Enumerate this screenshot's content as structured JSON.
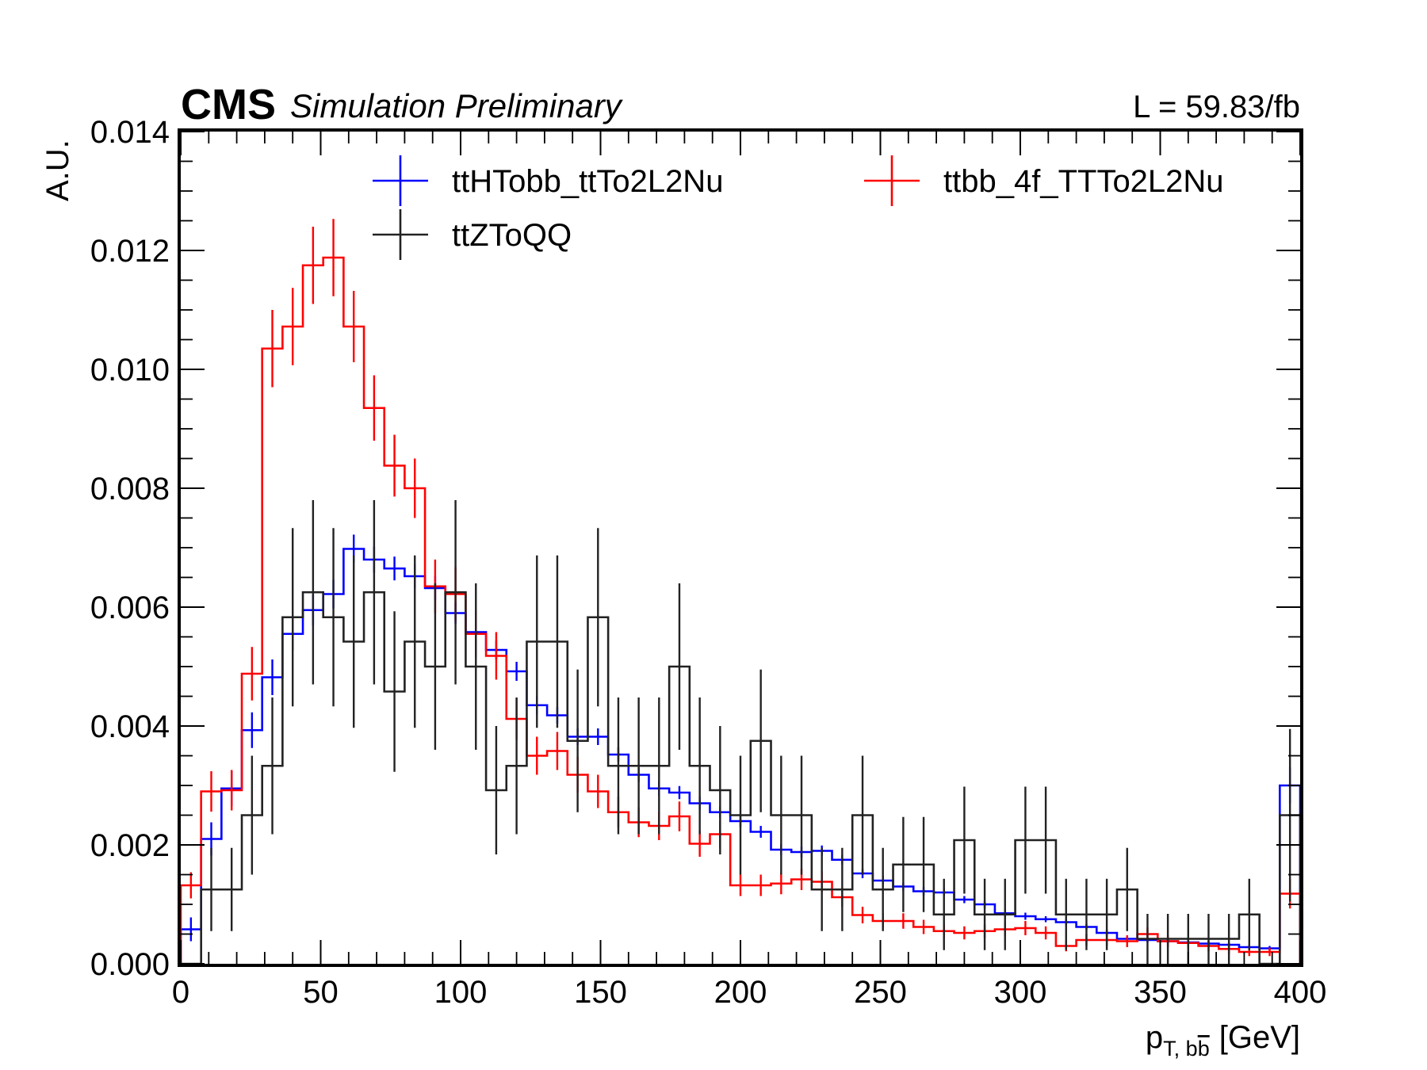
{
  "header": {
    "experiment": "CMS",
    "status": "Simulation Preliminary",
    "lumi": "L = 59.83/fb"
  },
  "chart_data": {
    "type": "histogram-step",
    "xlabel": "p_{T, b̅b} [GeV]",
    "xlabel_main": "p",
    "xlabel_sub": "T, b",
    "xlabel_sub_bar": "b",
    "xlabel_unit": "[GeV]",
    "ylabel": "A.U.",
    "xlim": [
      0,
      400
    ],
    "ylim": [
      0,
      0.014
    ],
    "xticks": [
      "0",
      "50",
      "100",
      "150",
      "200",
      "250",
      "300",
      "350",
      "400"
    ],
    "yticks": [
      "0.000",
      "0.002",
      "0.004",
      "0.006",
      "0.008",
      "0.010",
      "0.012",
      "0.014"
    ],
    "bin_edges_start": 0,
    "bin_width": 7.2727,
    "n_bins": 55,
    "legend": {
      "placement": "top"
    },
    "series": [
      {
        "name": "ttHTobb_ttTo2L2Nu",
        "color": "#0000ff",
        "values": [
          0.00058,
          0.0021,
          0.00295,
          0.00393,
          0.00482,
          0.00555,
          0.00595,
          0.00622,
          0.00698,
          0.0068,
          0.00665,
          0.00652,
          0.00632,
          0.0059,
          0.00558,
          0.00528,
          0.00492,
          0.00435,
          0.00418,
          0.00382,
          0.00382,
          0.00352,
          0.00318,
          0.00295,
          0.00288,
          0.0027,
          0.00255,
          0.0024,
          0.00222,
          0.00192,
          0.00188,
          0.0019,
          0.00175,
          0.00152,
          0.0014,
          0.0013,
          0.00122,
          0.0012,
          0.00108,
          0.001,
          0.00085,
          0.0008,
          0.00075,
          0.0007,
          0.00062,
          0.00052,
          0.00042,
          0.0004,
          0.00038,
          0.00036,
          0.00034,
          0.00032,
          0.00028,
          0.00026,
          0.003
        ],
        "errors": [
          0.0002,
          0.00028,
          0.0003,
          0.0003,
          0.0003,
          0.00028,
          0.00026,
          0.00024,
          0.00024,
          0.00022,
          0.0002,
          0.0002,
          0.0002,
          0.00018,
          0.00018,
          0.00016,
          0.00016,
          0.00015,
          0.00014,
          0.00014,
          0.00014,
          0.00012,
          0.00012,
          0.00012,
          0.00011,
          0.00011,
          0.0001,
          0.0001,
          0.0001,
          9e-05,
          9e-05,
          9e-05,
          8e-05,
          8e-05,
          8e-05,
          7e-05,
          7e-05,
          7e-05,
          6e-05,
          6e-05,
          6e-05,
          6e-05,
          5e-05,
          5e-05,
          5e-05,
          5e-05,
          4e-05,
          4e-05,
          4e-05,
          4e-05,
          4e-05,
          4e-05,
          4e-05,
          4e-05,
          0.0003
        ]
      },
      {
        "name": "ttbb_4f_TTTo2L2Nu",
        "color": "#ff0000",
        "values": [
          0.00132,
          0.0029,
          0.00292,
          0.00488,
          0.01035,
          0.01072,
          0.01175,
          0.01188,
          0.01072,
          0.00935,
          0.00838,
          0.008,
          0.00635,
          0.00622,
          0.00555,
          0.00518,
          0.00412,
          0.0035,
          0.00358,
          0.00318,
          0.0029,
          0.00255,
          0.00238,
          0.00232,
          0.00248,
          0.00202,
          0.00218,
          0.00132,
          0.00132,
          0.00135,
          0.00142,
          0.00138,
          0.00112,
          0.00082,
          0.00072,
          0.00072,
          0.00062,
          0.00055,
          0.00052,
          0.00055,
          0.00058,
          0.0006,
          0.00052,
          0.0003,
          0.0004,
          0.0004,
          0.00038,
          0.0005,
          0.00038,
          0.00035,
          0.0003,
          0.00025,
          0.0002,
          0.0002,
          0.00118
        ],
        "errors": [
          0.00022,
          0.00034,
          0.00034,
          0.00045,
          0.00065,
          0.00065,
          0.00065,
          0.00065,
          0.0006,
          0.00055,
          0.00052,
          0.0005,
          0.00045,
          0.00045,
          0.0004,
          0.0004,
          0.00035,
          0.00032,
          0.00032,
          0.0003,
          0.00028,
          0.00026,
          0.00025,
          0.00024,
          0.00025,
          0.00022,
          0.00023,
          0.00018,
          0.00018,
          0.00018,
          0.00018,
          0.00018,
          0.00016,
          0.00014,
          0.00013,
          0.00013,
          0.00012,
          0.00011,
          0.00011,
          0.00011,
          0.00012,
          0.00012,
          0.00011,
          9e-05,
          0.0001,
          0.0001,
          0.0001,
          0.00011,
          0.0001,
          9e-05,
          9e-05,
          8e-05,
          7e-05,
          7e-05,
          0.00025
        ]
      },
      {
        "name": "ttZToQQ",
        "color": "#222222",
        "values": [
          0.0,
          0.00125,
          0.00125,
          0.0025,
          0.00333,
          0.00583,
          0.00625,
          0.00583,
          0.00542,
          0.00625,
          0.00458,
          0.00542,
          0.005,
          0.00625,
          0.005,
          0.00292,
          0.00333,
          0.00542,
          0.00542,
          0.00375,
          0.00583,
          0.00333,
          0.00333,
          0.00333,
          0.005,
          0.00333,
          0.00292,
          0.0025,
          0.00375,
          0.0025,
          0.0025,
          0.00125,
          0.00125,
          0.0025,
          0.00125,
          0.00167,
          0.00167,
          0.00083,
          0.00208,
          0.00083,
          0.00083,
          0.00208,
          0.00208,
          0.00083,
          0.00083,
          0.00083,
          0.00125,
          0.00042,
          0.00042,
          0.00042,
          0.00042,
          0.00042,
          0.00083,
          0.0,
          0.0025
        ],
        "errors": [
          0.0,
          0.0007,
          0.0007,
          0.001,
          0.00115,
          0.0015,
          0.00155,
          0.0015,
          0.00145,
          0.00155,
          0.00135,
          0.00145,
          0.0014,
          0.00155,
          0.0014,
          0.00108,
          0.00115,
          0.00145,
          0.00145,
          0.0012,
          0.0015,
          0.00115,
          0.00115,
          0.00115,
          0.0014,
          0.00115,
          0.00108,
          0.001,
          0.0012,
          0.001,
          0.001,
          0.0007,
          0.0007,
          0.001,
          0.0007,
          0.0008,
          0.0008,
          0.0006,
          0.0009,
          0.0006,
          0.0006,
          0.0009,
          0.0009,
          0.0006,
          0.0006,
          0.0006,
          0.0007,
          0.00042,
          0.00042,
          0.00042,
          0.00042,
          0.00042,
          0.0006,
          0.0,
          0.00145
        ]
      }
    ]
  }
}
